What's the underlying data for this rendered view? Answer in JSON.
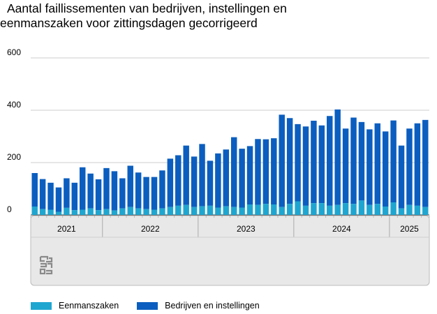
{
  "title_line1": "Aantal faillissementen van bedrijven, instellingen en",
  "title_line2": "eenmanszaken voor zittingsdagen gecorrigeerd",
  "logo": "cbs-logo",
  "colors": {
    "eenmanszaken": "#1fa6d0",
    "bedrijven": "#0b5ebf",
    "grid": "#cccccc",
    "panel": "#e8e8e8",
    "panel_border": "#bbbbbb"
  },
  "chart_data": {
    "type": "bar",
    "stacked": true,
    "ylim": [
      0,
      600
    ],
    "yticks": [
      "0",
      "200",
      "400",
      "600"
    ],
    "grid": true,
    "legend_position": "bottom-left",
    "year_groups": [
      {
        "label": "2021",
        "count": 9
      },
      {
        "label": "2022",
        "count": 12
      },
      {
        "label": "2023",
        "count": 12
      },
      {
        "label": "2024",
        "count": 12
      },
      {
        "label": "2025",
        "count": 5
      }
    ],
    "series": [
      {
        "name": "Eenmanszaken",
        "values": [
          32,
          22,
          20,
          12,
          27,
          18,
          20,
          25,
          18,
          22,
          17,
          25,
          30,
          25,
          22,
          20,
          25,
          30,
          35,
          38,
          30,
          33,
          35,
          28,
          33,
          30,
          28,
          40,
          38,
          42,
          40,
          30,
          42,
          52,
          35,
          45,
          45,
          35,
          38,
          45,
          42,
          55,
          38,
          42,
          32,
          48,
          25,
          38,
          35,
          30
        ]
      },
      {
        "name": "Bedrijven en instellingen",
        "values": [
          128,
          115,
          103,
          93,
          113,
          105,
          162,
          133,
          118,
          157,
          150,
          115,
          158,
          137,
          123,
          125,
          145,
          185,
          193,
          227,
          193,
          238,
          172,
          207,
          217,
          267,
          225,
          223,
          252,
          247,
          253,
          353,
          328,
          295,
          303,
          315,
          297,
          343,
          365,
          285,
          330,
          300,
          289,
          308,
          287,
          313,
          240,
          292,
          315,
          333
        ]
      }
    ]
  }
}
